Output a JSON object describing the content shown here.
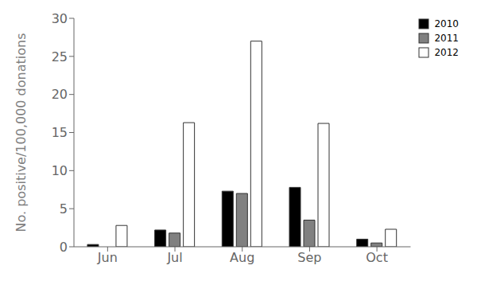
{
  "chart_data": {
    "type": "bar",
    "ylabel": "No. positive/100,000 donations",
    "categories": [
      "Jun",
      "Jul",
      "Aug",
      "Sep",
      "Oct"
    ],
    "series": [
      {
        "name": "2010",
        "color": "#000000",
        "values": [
          0.3,
          2.2,
          7.3,
          7.8,
          1.0
        ]
      },
      {
        "name": "2011",
        "color": "#808080",
        "values": [
          0.0,
          1.8,
          7.0,
          3.5,
          0.5
        ]
      },
      {
        "name": "2012",
        "color": "#ffffff",
        "values": [
          2.8,
          16.3,
          27.0,
          16.2,
          2.3
        ]
      }
    ],
    "ylim": [
      0,
      30
    ],
    "yticks": [
      0,
      5,
      10,
      15,
      20,
      25,
      30
    ],
    "grid": false,
    "legend": "upper right"
  }
}
